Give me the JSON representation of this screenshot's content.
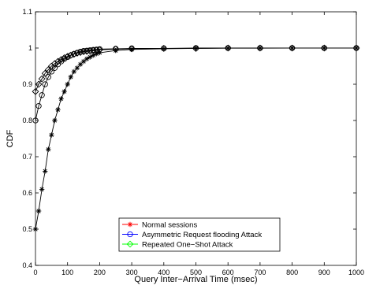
{
  "chart_data": {
    "type": "line",
    "title": "",
    "xlabel": "Query Inter−Arrival Time (msec)",
    "ylabel": "CDF",
    "xlim": [
      0,
      1000
    ],
    "ylim": [
      0.4,
      1.1
    ],
    "x_ticks": [
      "0",
      "100",
      "200",
      "300",
      "400",
      "500",
      "600",
      "700",
      "800",
      "900",
      "1000"
    ],
    "y_ticks": [
      "0.4",
      "0.5",
      "0.6",
      "0.7",
      "0.8",
      "0.9",
      "1",
      "1.1"
    ],
    "grid": false,
    "legend_position": "bottom-center",
    "series": [
      {
        "name": "Normal sessions",
        "color": "#ff0000",
        "marker": "star",
        "x": [
          0,
          10,
          20,
          30,
          40,
          50,
          60,
          70,
          80,
          90,
          100,
          110,
          120,
          130,
          140,
          150,
          160,
          170,
          180,
          190,
          200,
          250,
          300,
          400,
          500,
          600,
          700,
          800,
          900,
          1000
        ],
        "y": [
          0.5,
          0.55,
          0.61,
          0.66,
          0.72,
          0.76,
          0.8,
          0.83,
          0.86,
          0.88,
          0.9,
          0.92,
          0.935,
          0.945,
          0.955,
          0.963,
          0.97,
          0.975,
          0.98,
          0.984,
          0.987,
          0.993,
          0.996,
          0.998,
          0.999,
          0.9995,
          0.9997,
          0.9998,
          0.9999,
          1.0
        ]
      },
      {
        "name": "Asymmetric Request flooding Attack",
        "color": "#0000ff",
        "marker": "circle",
        "x": [
          0,
          10,
          20,
          30,
          40,
          50,
          60,
          70,
          80,
          90,
          100,
          110,
          120,
          130,
          140,
          150,
          160,
          170,
          180,
          190,
          200,
          250,
          300,
          400,
          500,
          600,
          700,
          800,
          900,
          1000
        ],
        "y": [
          0.8,
          0.84,
          0.87,
          0.9,
          0.92,
          0.935,
          0.945,
          0.955,
          0.963,
          0.97,
          0.975,
          0.98,
          0.984,
          0.987,
          0.99,
          0.992,
          0.993,
          0.994,
          0.995,
          0.996,
          0.997,
          0.998,
          0.999,
          0.999,
          1.0,
          1.0,
          1.0,
          1.0,
          1.0,
          1.0
        ]
      },
      {
        "name": "Repeated One−Shot Attack",
        "color": "#00ff00",
        "marker": "diamond",
        "x": [
          0,
          10,
          20,
          30,
          40,
          50,
          60,
          70,
          80,
          90,
          100,
          110,
          120,
          130,
          140,
          150,
          160,
          170,
          180,
          190,
          200,
          250,
          300,
          400,
          500,
          600,
          700,
          800,
          900,
          1000
        ],
        "y": [
          0.88,
          0.9,
          0.915,
          0.93,
          0.94,
          0.95,
          0.957,
          0.963,
          0.968,
          0.973,
          0.977,
          0.98,
          0.983,
          0.986,
          0.988,
          0.99,
          0.991,
          0.992,
          0.993,
          0.994,
          0.995,
          0.997,
          0.998,
          0.999,
          0.999,
          1.0,
          1.0,
          1.0,
          1.0,
          1.0
        ]
      }
    ]
  }
}
